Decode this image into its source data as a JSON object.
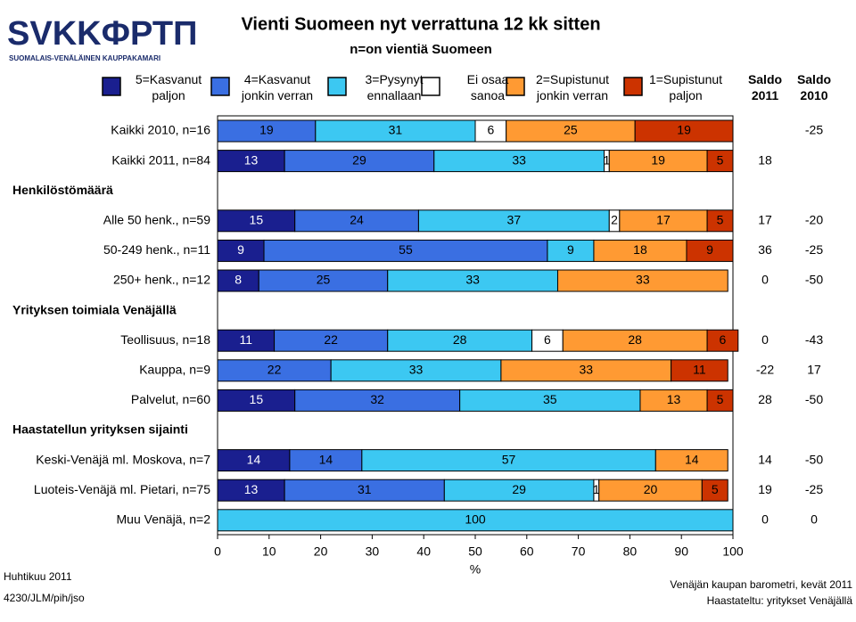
{
  "logo": {
    "name": "SVKKФРТП",
    "subtitle": "SUOMALAIS-VENÄLÄINEN KAUPPAKAMARI"
  },
  "chart_data": {
    "type": "stacked-bar-horizontal",
    "title": "Vienti Suomeen nyt verrattuna 12 kk sitten",
    "subtitle": "n=on vientiä Suomeen",
    "x_label": "%",
    "categories": [
      "Kaikki 2010, n=16",
      "Kaikki 2011, n=84",
      "Henkilöstömäärä",
      "Alle 50 henk., n=59",
      "50-249 henk., n=11",
      "250+ henk., n=12",
      "Yrityksen toimiala Venäjällä",
      "Teollisuus, n=18",
      "Kauppa, n=9",
      "Palvelut, n=60",
      "Haastatellun yrityksen sijainti",
      "Keski-Venäjä ml. Moskova, n=7",
      "Luoteis-Venäjä ml. Pietari, n=75",
      "Muu Venäjä, n=2"
    ],
    "row_kind": [
      "data",
      "data",
      "group",
      "data",
      "data",
      "data",
      "group",
      "data",
      "data",
      "data",
      "group",
      "data",
      "data",
      "data"
    ],
    "series": [
      {
        "name": "5=Kasvanut\npaljon",
        "color": "#1a1f8f",
        "label_color": "#ffffff",
        "values": [
          null,
          13,
          null,
          15,
          9,
          8,
          null,
          11,
          null,
          15,
          null,
          14,
          13,
          null
        ]
      },
      {
        "name": "4=Kasvanut\njonkin verran",
        "color": "#3a6fe2",
        "label_color": "#000000",
        "values": [
          19,
          29,
          null,
          24,
          55,
          25,
          null,
          22,
          22,
          32,
          null,
          14,
          31,
          null
        ]
      },
      {
        "name": "3=Pysynyt\nennallaan",
        "color": "#3cc8f2",
        "label_color": "#000000",
        "values": [
          31,
          33,
          null,
          37,
          9,
          33,
          null,
          28,
          33,
          35,
          null,
          57,
          29,
          100
        ]
      },
      {
        "name": "Ei osaa\nsanoa",
        "color": "#ffffff",
        "label_color": "#000000",
        "values": [
          6,
          1,
          null,
          2,
          null,
          null,
          null,
          6,
          null,
          null,
          null,
          null,
          1,
          null
        ]
      },
      {
        "name": "2=Supistunut\njonkin verran",
        "color": "#ff9a33",
        "label_color": "#000000",
        "values": [
          25,
          19,
          null,
          17,
          18,
          33,
          null,
          28,
          33,
          13,
          null,
          14,
          20,
          null
        ]
      },
      {
        "name": "1=Supistunut\npaljon",
        "color": "#cc3300",
        "label_color": "#000000",
        "values": [
          19,
          5,
          null,
          5,
          9,
          null,
          null,
          6,
          11,
          5,
          null,
          null,
          5,
          null
        ]
      }
    ],
    "columns": [
      {
        "name": "Saldo\n2011",
        "values": [
          null,
          18,
          null,
          17,
          36,
          0,
          null,
          0,
          -22,
          28,
          null,
          14,
          19,
          0
        ]
      },
      {
        "name": "Saldo\n2010",
        "values": [
          -25,
          null,
          null,
          -20,
          -25,
          -50,
          null,
          -43,
          17,
          -50,
          null,
          -50,
          -25,
          0
        ]
      }
    ],
    "xlim": [
      0,
      100
    ],
    "xticks": [
      0,
      10,
      20,
      30,
      40,
      50,
      60,
      70,
      80,
      90,
      100
    ]
  },
  "footer": {
    "left": [
      "Huhtikuu 2011",
      "4230/JLM/pih/jso"
    ],
    "right": [
      "Venäjän kaupan barometri, kevät 2011",
      "Haastateltu: yritykset Venäjällä"
    ]
  }
}
